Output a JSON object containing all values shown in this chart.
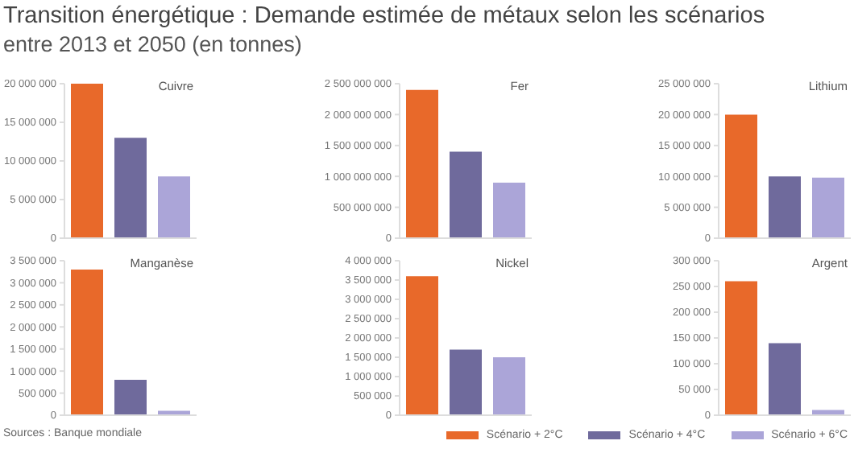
{
  "chart_data": [
    {
      "type": "other",
      "title": "Transition énergétique : Demande estimée de métaux selon les scénarios",
      "subtitle": "entre 2013 et 2050 (en tonnes)",
      "annotations": [
        "Sources : Banque mondiale"
      ]
    },
    {
      "type": "bar",
      "title": "Cuivre",
      "categories": [
        null
      ],
      "tick_labels": "y",
      "ylim": [
        0,
        20000000
      ],
      "yticks": [
        {
          "value": 0,
          "label": "0"
        },
        {
          "value": 5000000,
          "label": "5 000 000"
        },
        {
          "value": 10000000,
          "label": "10 000 000"
        },
        {
          "value": 15000000,
          "label": "15 000 000"
        },
        {
          "value": 20000000,
          "label": "20 000 000"
        }
      ],
      "series": [
        {
          "color": "#e8692a",
          "values": [
            20000000
          ]
        },
        {
          "color": "#6f6a9c",
          "values": [
            13000000
          ]
        },
        {
          "color": "#aba5d8",
          "values": [
            8000000
          ]
        }
      ]
    },
    {
      "type": "bar",
      "title": "Fer",
      "categories": [
        null
      ],
      "tick_labels": "y",
      "ylim": [
        0,
        2500000000
      ],
      "yticks": [
        {
          "value": 0,
          "label": "0"
        },
        {
          "value": 500000000,
          "label": "500 000 000"
        },
        {
          "value": 1000000000,
          "label": "1 000 000 000"
        },
        {
          "value": 1500000000,
          "label": "1 500 000 000"
        },
        {
          "value": 2000000000,
          "label": "2 000 000 000"
        },
        {
          "value": 2500000000,
          "label": "2 500 000 000"
        }
      ],
      "series": [
        {
          "color": "#e8692a",
          "values": [
            2400000000
          ]
        },
        {
          "color": "#6f6a9c",
          "values": [
            1400000000
          ]
        },
        {
          "color": "#aba5d8",
          "values": [
            900000000
          ]
        }
      ]
    },
    {
      "type": "bar",
      "title": "Lithium",
      "categories": [
        null
      ],
      "tick_labels": "y",
      "ylim": [
        0,
        25000000
      ],
      "yticks": [
        {
          "value": 0,
          "label": "0"
        },
        {
          "value": 5000000,
          "label": "5 000 000"
        },
        {
          "value": 10000000,
          "label": "10 000 000"
        },
        {
          "value": 15000000,
          "label": "15 000 000"
        },
        {
          "value": 20000000,
          "label": "20 000 000"
        },
        {
          "value": 25000000,
          "label": "25 000 000"
        }
      ],
      "series": [
        {
          "color": "#e8692a",
          "values": [
            20000000
          ]
        },
        {
          "color": "#6f6a9c",
          "values": [
            10000000
          ]
        },
        {
          "color": "#aba5d8",
          "values": [
            9800000
          ]
        }
      ]
    },
    {
      "type": "bar",
      "title": "Manganèse",
      "categories": [
        null
      ],
      "tick_labels": "y",
      "ylim": [
        0,
        3500000
      ],
      "yticks": [
        {
          "value": 0,
          "label": "0"
        },
        {
          "value": 500000,
          "label": "500 000"
        },
        {
          "value": 1000000,
          "label": "1 000 000"
        },
        {
          "value": 1500000,
          "label": "1 500 000"
        },
        {
          "value": 2000000,
          "label": "2 000 000"
        },
        {
          "value": 2500000,
          "label": "2 500 000"
        },
        {
          "value": 3000000,
          "label": "3 000 000"
        },
        {
          "value": 3500000,
          "label": "3 500 000"
        }
      ],
      "series": [
        {
          "color": "#e8692a",
          "values": [
            3300000
          ]
        },
        {
          "color": "#6f6a9c",
          "values": [
            800000
          ]
        },
        {
          "color": "#aba5d8",
          "values": [
            100000
          ]
        }
      ]
    },
    {
      "type": "bar",
      "title": "Nickel",
      "categories": [
        null
      ],
      "tick_labels": "y",
      "ylim": [
        0,
        4000000
      ],
      "yticks": [
        {
          "value": 0,
          "label": "0"
        },
        {
          "value": 500000,
          "label": "500 000"
        },
        {
          "value": 1000000,
          "label": "1 000 000"
        },
        {
          "value": 1500000,
          "label": "1 500 000"
        },
        {
          "value": 2000000,
          "label": "2 000 000"
        },
        {
          "value": 2500000,
          "label": "2 500 000"
        },
        {
          "value": 3000000,
          "label": "3 000 000"
        },
        {
          "value": 3500000,
          "label": "3 500 000"
        },
        {
          "value": 4000000,
          "label": "4 000 000"
        }
      ],
      "series": [
        {
          "color": "#e8692a",
          "values": [
            3600000
          ]
        },
        {
          "color": "#6f6a9c",
          "values": [
            1700000
          ]
        },
        {
          "color": "#aba5d8",
          "values": [
            1500000
          ]
        }
      ]
    },
    {
      "type": "bar",
      "title": "Argent",
      "categories": [
        null
      ],
      "tick_labels": "y",
      "legend": "bottom",
      "ylim": [
        0,
        300000
      ],
      "yticks": [
        {
          "value": 0,
          "label": "0"
        },
        {
          "value": 50000,
          "label": "50 000"
        },
        {
          "value": 100000,
          "label": "100 000"
        },
        {
          "value": 150000,
          "label": "150 000"
        },
        {
          "value": 200000,
          "label": "200 000"
        },
        {
          "value": 250000,
          "label": "250 000"
        },
        {
          "value": 300000,
          "label": "300 000"
        }
      ],
      "series": [
        {
          "name": "Scénario + 2°C",
          "color": "#e8692a",
          "values": [
            260000
          ]
        },
        {
          "name": "Scénario + 4°C",
          "color": "#6f6a9c",
          "values": [
            140000
          ]
        },
        {
          "name": "Scénario + 6°C",
          "color": "#aba5d8",
          "values": [
            10000
          ]
        }
      ]
    }
  ]
}
